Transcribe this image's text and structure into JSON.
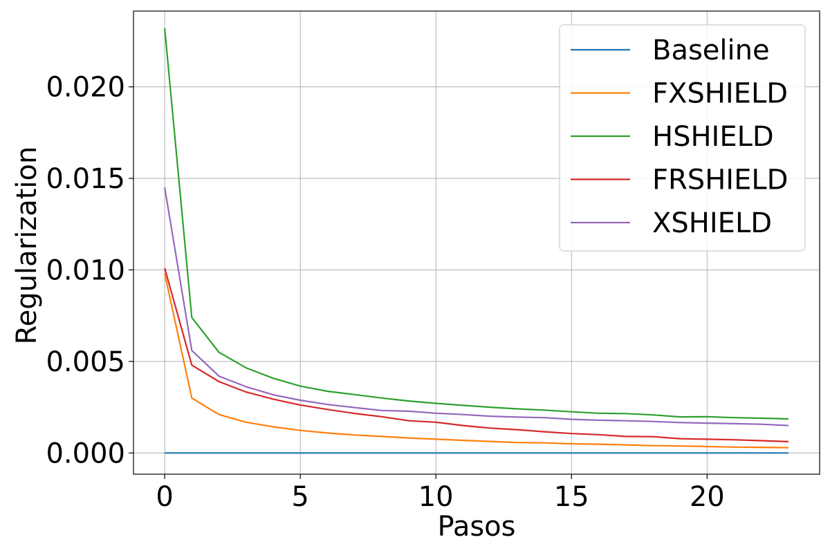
{
  "chart_data": {
    "type": "line",
    "title": "",
    "xlabel": "Pasos",
    "ylabel": "Regularization",
    "xlim": [
      -1.15,
      24.15
    ],
    "ylim": [
      -0.00116,
      0.02414
    ],
    "grid": true,
    "legend_position": "top-right",
    "x_ticks": [
      0,
      5,
      10,
      15,
      20
    ],
    "x_tick_labels": [
      "0",
      "5",
      "10",
      "15",
      "20"
    ],
    "y_ticks": [
      0.0,
      0.005,
      0.01,
      0.015,
      0.02
    ],
    "y_tick_labels": [
      "0.000",
      "0.005",
      "0.010",
      "0.015",
      "0.020"
    ],
    "x": [
      0,
      1,
      2,
      3,
      4,
      5,
      6,
      7,
      8,
      9,
      10,
      11,
      12,
      13,
      14,
      15,
      16,
      17,
      18,
      19,
      20,
      21,
      22,
      23
    ],
    "series": [
      {
        "name": "Baseline",
        "color": "#1f77b4",
        "values": [
          0,
          0,
          0,
          0,
          0,
          0,
          0,
          0,
          0,
          0,
          0,
          0,
          0,
          0,
          0,
          0,
          0,
          0,
          0,
          0,
          0,
          0,
          0,
          0
        ]
      },
      {
        "name": "FXSHIELD",
        "color": "#ff7f0e",
        "values": [
          0.0098,
          0.003,
          0.0021,
          0.00168,
          0.00143,
          0.00123,
          0.00109,
          0.00098,
          0.0009,
          0.00082,
          0.00075,
          0.00069,
          0.00063,
          0.00057,
          0.00055,
          0.0005,
          0.00048,
          0.00044,
          0.0004,
          0.00038,
          0.00035,
          0.00032,
          0.00031,
          0.00029
        ]
      },
      {
        "name": "HSHIELD",
        "color": "#2ca02c",
        "values": [
          0.0232,
          0.0074,
          0.0055,
          0.00465,
          0.00408,
          0.00365,
          0.00337,
          0.00319,
          0.003,
          0.00284,
          0.00271,
          0.0026,
          0.0025,
          0.00241,
          0.00234,
          0.00225,
          0.00217,
          0.00215,
          0.00208,
          0.00197,
          0.00198,
          0.00193,
          0.0019,
          0.00186
        ]
      },
      {
        "name": "FRSHIELD",
        "color": "#d62728",
        "values": [
          0.0101,
          0.0048,
          0.0039,
          0.00333,
          0.00294,
          0.00262,
          0.00238,
          0.00216,
          0.00198,
          0.00176,
          0.00168,
          0.0015,
          0.00136,
          0.00127,
          0.00116,
          0.00106,
          0.001,
          0.0009,
          0.00089,
          0.00078,
          0.00075,
          0.00072,
          0.00067,
          0.00062
        ]
      },
      {
        "name": "XSHIELD",
        "color": "#9467bd",
        "values": [
          0.0145,
          0.0056,
          0.0042,
          0.00362,
          0.00318,
          0.00288,
          0.00265,
          0.00248,
          0.00232,
          0.00228,
          0.00217,
          0.0021,
          0.00201,
          0.00196,
          0.00193,
          0.00184,
          0.00179,
          0.00176,
          0.00172,
          0.00166,
          0.00163,
          0.0016,
          0.00157,
          0.0015
        ]
      }
    ]
  }
}
